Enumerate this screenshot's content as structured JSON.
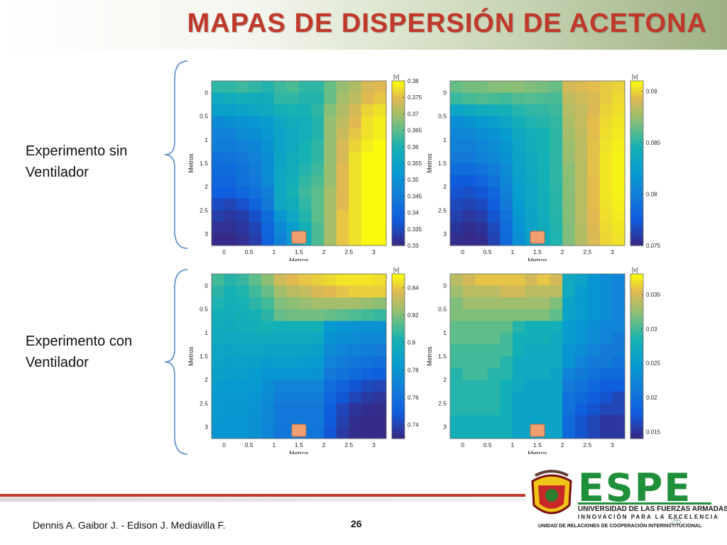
{
  "header": {
    "title": "MAPAS DE DISPERSIÓN DE ACETONA"
  },
  "row_labels": {
    "top": [
      "Experimento sin",
      "Ventilador"
    ],
    "bottom": [
      "Experimento con",
      "Ventilador"
    ]
  },
  "footer": {
    "authors": "Dennis A. Gaibor J.  -  Edison J. Mediavilla F.",
    "page": "26",
    "page_faint": "26"
  },
  "logo": {
    "name": "ESPE",
    "line1": "UNIVERSIDAD DE LAS FUERZAS ARMADAS",
    "line2": "INNOVACIÓN PARA LA EXCELENCIA",
    "line3": "UNIDAD DE RELACIONES DE COOPERACIÓN INTERINSTITUCIONAL"
  },
  "colors": {
    "title": "#c0392b",
    "brace": "#5b8ac8",
    "footer_line": "#c0392b",
    "marker": "#f0a070",
    "espe_green": "#1f8f3a"
  },
  "chart_data": [
    {
      "type": "heatmap",
      "panel": "top-left",
      "xlabel": "Metros",
      "ylabel": "Metros",
      "xticks": [
        "0",
        "0.5",
        "1",
        "1.5",
        "2",
        "2.5",
        "3"
      ],
      "yticks": [
        "0",
        "0.5",
        "1",
        "1.5",
        "2",
        "2.5",
        "3"
      ],
      "colorbar_unit": "[v]",
      "colorbar_ticks": [
        "0.38",
        "0.375",
        "0.37",
        "0.365",
        "0.36",
        "0.355",
        "0.35",
        "0.345",
        "0.34",
        "0.335",
        "0.33"
      ],
      "vmin": 0.33,
      "vmax": 0.38,
      "marker_x": 1.5,
      "z": [
        [
          0.362,
          0.362,
          0.363,
          0.362,
          0.361,
          0.363,
          0.364,
          0.362,
          0.362,
          0.366,
          0.369,
          0.371,
          0.374,
          0.375
        ],
        [
          0.357,
          0.358,
          0.359,
          0.358,
          0.358,
          0.362,
          0.362,
          0.361,
          0.361,
          0.366,
          0.37,
          0.372,
          0.375,
          0.376
        ],
        [
          0.354,
          0.354,
          0.355,
          0.356,
          0.357,
          0.359,
          0.36,
          0.36,
          0.362,
          0.368,
          0.371,
          0.374,
          0.377,
          0.378
        ],
        [
          0.348,
          0.349,
          0.35,
          0.351,
          0.353,
          0.356,
          0.358,
          0.359,
          0.361,
          0.369,
          0.372,
          0.375,
          0.378,
          0.379
        ],
        [
          0.346,
          0.346,
          0.348,
          0.349,
          0.351,
          0.355,
          0.357,
          0.359,
          0.361,
          0.369,
          0.373,
          0.376,
          0.378,
          0.379
        ],
        [
          0.345,
          0.345,
          0.346,
          0.347,
          0.35,
          0.355,
          0.357,
          0.36,
          0.362,
          0.369,
          0.374,
          0.377,
          0.379,
          0.38
        ],
        [
          0.342,
          0.343,
          0.344,
          0.346,
          0.349,
          0.355,
          0.358,
          0.36,
          0.362,
          0.369,
          0.374,
          0.378,
          0.38,
          0.38
        ],
        [
          0.341,
          0.341,
          0.343,
          0.345,
          0.349,
          0.356,
          0.358,
          0.361,
          0.363,
          0.369,
          0.375,
          0.378,
          0.38,
          0.38
        ],
        [
          0.34,
          0.34,
          0.342,
          0.344,
          0.348,
          0.356,
          0.359,
          0.362,
          0.364,
          0.369,
          0.375,
          0.378,
          0.38,
          0.38
        ],
        [
          0.338,
          0.338,
          0.34,
          0.342,
          0.346,
          0.356,
          0.36,
          0.363,
          0.365,
          0.37,
          0.375,
          0.378,
          0.38,
          0.38
        ],
        [
          0.335,
          0.334,
          0.336,
          0.339,
          0.344,
          0.356,
          0.358,
          0.362,
          0.365,
          0.37,
          0.375,
          0.378,
          0.38,
          0.38
        ],
        [
          0.333,
          0.332,
          0.333,
          0.336,
          0.341,
          0.351,
          0.356,
          0.361,
          0.365,
          0.37,
          0.376,
          0.378,
          0.38,
          0.38
        ],
        [
          0.331,
          0.331,
          0.332,
          0.334,
          0.34,
          0.348,
          0.353,
          0.359,
          0.364,
          0.37,
          0.376,
          0.378,
          0.38,
          0.38
        ],
        [
          0.33,
          0.33,
          0.331,
          0.333,
          0.339,
          0.346,
          0.352,
          0.358,
          0.364,
          0.37,
          0.376,
          0.378,
          0.38,
          0.38
        ]
      ]
    },
    {
      "type": "heatmap",
      "panel": "top-right",
      "xlabel": "Metros",
      "ylabel": "Metros",
      "xticks": [
        "0",
        "0.5",
        "1",
        "1.5",
        "2",
        "2.5",
        "3"
      ],
      "yticks": [
        "0",
        "0.5",
        "1",
        "1.5",
        "2",
        "2.5",
        "3"
      ],
      "colorbar_unit": "[v]",
      "colorbar_ticks": [
        "0.09",
        "0.085",
        "0.08",
        "0.075"
      ],
      "vmin": 0.075,
      "vmax": 0.091,
      "marker_x": 1.5,
      "z": [
        [
          0.0865,
          0.0868,
          0.0868,
          0.0871,
          0.0872,
          0.0873,
          0.087,
          0.0868,
          0.0865,
          0.089,
          0.0893,
          0.0895,
          0.0898,
          0.09
        ],
        [
          0.0855,
          0.0858,
          0.086,
          0.0858,
          0.0856,
          0.086,
          0.0861,
          0.0859,
          0.0858,
          0.0885,
          0.0889,
          0.0892,
          0.0898,
          0.0902
        ],
        [
          0.083,
          0.0835,
          0.084,
          0.0842,
          0.0845,
          0.085,
          0.0852,
          0.0853,
          0.0855,
          0.0882,
          0.0886,
          0.0893,
          0.09,
          0.0903
        ],
        [
          0.081,
          0.0815,
          0.082,
          0.0825,
          0.0832,
          0.0842,
          0.0848,
          0.085,
          0.0853,
          0.088,
          0.0886,
          0.0895,
          0.0902,
          0.0905
        ],
        [
          0.0805,
          0.0805,
          0.081,
          0.0815,
          0.0822,
          0.0835,
          0.0842,
          0.0846,
          0.0852,
          0.0878,
          0.0885,
          0.0895,
          0.0903,
          0.0906
        ],
        [
          0.08,
          0.08,
          0.0805,
          0.081,
          0.0818,
          0.0832,
          0.084,
          0.0846,
          0.0852,
          0.0876,
          0.0884,
          0.0896,
          0.0904,
          0.0907
        ],
        [
          0.0795,
          0.0795,
          0.08,
          0.0806,
          0.0815,
          0.083,
          0.0838,
          0.0845,
          0.0852,
          0.0875,
          0.0884,
          0.0896,
          0.0905,
          0.0908
        ],
        [
          0.0785,
          0.0785,
          0.079,
          0.0798,
          0.081,
          0.0828,
          0.0836,
          0.0845,
          0.0852,
          0.0873,
          0.0883,
          0.0896,
          0.0905,
          0.0908
        ],
        [
          0.0775,
          0.0775,
          0.078,
          0.079,
          0.0805,
          0.0826,
          0.0835,
          0.0844,
          0.0852,
          0.0872,
          0.0883,
          0.0895,
          0.0905,
          0.0908
        ],
        [
          0.077,
          0.0768,
          0.0772,
          0.0782,
          0.08,
          0.0824,
          0.0833,
          0.0843,
          0.0851,
          0.0872,
          0.0883,
          0.0895,
          0.0905,
          0.0908
        ],
        [
          0.0765,
          0.0762,
          0.0766,
          0.0776,
          0.0796,
          0.0822,
          0.0832,
          0.0842,
          0.0851,
          0.0871,
          0.0883,
          0.0895,
          0.0904,
          0.0907
        ],
        [
          0.076,
          0.0756,
          0.076,
          0.077,
          0.079,
          0.0818,
          0.083,
          0.084,
          0.085,
          0.0871,
          0.0883,
          0.0894,
          0.0903,
          0.0906
        ],
        [
          0.0755,
          0.0752,
          0.0755,
          0.0765,
          0.0786,
          0.0815,
          0.0828,
          0.0839,
          0.0849,
          0.087,
          0.0882,
          0.0893,
          0.0902,
          0.0905
        ],
        [
          0.0752,
          0.075,
          0.0752,
          0.0762,
          0.0784,
          0.0812,
          0.0826,
          0.0838,
          0.0848,
          0.087,
          0.0882,
          0.0892,
          0.0901,
          0.0904
        ]
      ]
    },
    {
      "type": "heatmap",
      "panel": "bottom-left",
      "xlabel": "Metros",
      "ylabel": "Metros",
      "xticks": [
        "0",
        "0.5",
        "1",
        "1.5",
        "2",
        "2.5",
        "3"
      ],
      "yticks": [
        "0",
        "0.5",
        "1",
        "1.5",
        "2",
        "2.5",
        "3"
      ],
      "colorbar_unit": "[v]",
      "colorbar_ticks": [
        "0.84",
        "0.82",
        "0.8",
        "0.78",
        "0.76",
        "0.74"
      ],
      "vmin": 0.73,
      "vmax": 0.85,
      "marker_x": 1.5,
      "z": [
        [
          0.81,
          0.805,
          0.808,
          0.815,
          0.822,
          0.834,
          0.838,
          0.84,
          0.842,
          0.844,
          0.846,
          0.846,
          0.846,
          0.845
        ],
        [
          0.806,
          0.802,
          0.804,
          0.81,
          0.816,
          0.826,
          0.83,
          0.832,
          0.836,
          0.838,
          0.84,
          0.842,
          0.842,
          0.842
        ],
        [
          0.803,
          0.8,
          0.802,
          0.806,
          0.81,
          0.82,
          0.822,
          0.824,
          0.826,
          0.826,
          0.826,
          0.826,
          0.824,
          0.822
        ],
        [
          0.8,
          0.798,
          0.8,
          0.802,
          0.806,
          0.816,
          0.818,
          0.818,
          0.818,
          0.816,
          0.814,
          0.812,
          0.81,
          0.808
        ],
        [
          0.797,
          0.796,
          0.798,
          0.8,
          0.802,
          0.8,
          0.8,
          0.8,
          0.8,
          0.782,
          0.78,
          0.778,
          0.778,
          0.778
        ],
        [
          0.795,
          0.794,
          0.795,
          0.796,
          0.796,
          0.795,
          0.795,
          0.795,
          0.793,
          0.778,
          0.776,
          0.774,
          0.772,
          0.772
        ],
        [
          0.792,
          0.791,
          0.792,
          0.792,
          0.79,
          0.79,
          0.79,
          0.789,
          0.788,
          0.774,
          0.77,
          0.768,
          0.766,
          0.765
        ],
        [
          0.79,
          0.788,
          0.789,
          0.788,
          0.785,
          0.786,
          0.786,
          0.785,
          0.784,
          0.77,
          0.766,
          0.762,
          0.76,
          0.758
        ],
        [
          0.787,
          0.786,
          0.786,
          0.784,
          0.78,
          0.78,
          0.78,
          0.78,
          0.779,
          0.764,
          0.76,
          0.756,
          0.752,
          0.75
        ],
        [
          0.785,
          0.784,
          0.784,
          0.782,
          0.776,
          0.77,
          0.77,
          0.77,
          0.77,
          0.758,
          0.752,
          0.746,
          0.742,
          0.74
        ],
        [
          0.783,
          0.782,
          0.782,
          0.78,
          0.774,
          0.766,
          0.766,
          0.766,
          0.766,
          0.754,
          0.746,
          0.74,
          0.736,
          0.734
        ],
        [
          0.782,
          0.781,
          0.781,
          0.778,
          0.772,
          0.764,
          0.764,
          0.764,
          0.764,
          0.75,
          0.74,
          0.734,
          0.732,
          0.731
        ],
        [
          0.781,
          0.78,
          0.78,
          0.777,
          0.771,
          0.763,
          0.763,
          0.763,
          0.763,
          0.748,
          0.738,
          0.732,
          0.73,
          0.73
        ],
        [
          0.78,
          0.78,
          0.78,
          0.777,
          0.77,
          0.762,
          0.762,
          0.762,
          0.762,
          0.746,
          0.736,
          0.731,
          0.73,
          0.73
        ]
      ]
    },
    {
      "type": "heatmap",
      "panel": "bottom-right",
      "xlabel": "Metros",
      "ylabel": "Metros",
      "xticks": [
        "0",
        "0.5",
        "1",
        "1.5",
        "2",
        "2.5",
        "3"
      ],
      "yticks": [
        "0",
        "0.5",
        "1",
        "1.5",
        "2",
        "2.5",
        "3"
      ],
      "colorbar_unit": "[v]",
      "colorbar_ticks": [
        "0.035",
        "0.03",
        "0.025",
        "0.02",
        "0.015"
      ],
      "vmin": 0.014,
      "vmax": 0.038,
      "marker_x": 1.5,
      "z": [
        [
          0.034,
          0.035,
          0.036,
          0.036,
          0.036,
          0.036,
          0.035,
          0.036,
          0.035,
          0.027,
          0.026,
          0.024,
          0.023,
          0.022
        ],
        [
          0.033,
          0.034,
          0.034,
          0.034,
          0.035,
          0.035,
          0.034,
          0.034,
          0.034,
          0.027,
          0.025,
          0.024,
          0.023,
          0.022
        ],
        [
          0.032,
          0.033,
          0.033,
          0.033,
          0.033,
          0.033,
          0.033,
          0.033,
          0.032,
          0.026,
          0.025,
          0.024,
          0.023,
          0.022
        ],
        [
          0.032,
          0.032,
          0.032,
          0.032,
          0.032,
          0.032,
          0.032,
          0.032,
          0.031,
          0.026,
          0.025,
          0.024,
          0.023,
          0.022
        ],
        [
          0.031,
          0.031,
          0.031,
          0.031,
          0.031,
          0.029,
          0.028,
          0.028,
          0.028,
          0.025,
          0.024,
          0.023,
          0.022,
          0.022
        ],
        [
          0.031,
          0.031,
          0.031,
          0.031,
          0.03,
          0.028,
          0.028,
          0.028,
          0.027,
          0.025,
          0.024,
          0.023,
          0.022,
          0.021
        ],
        [
          0.03,
          0.03,
          0.03,
          0.03,
          0.03,
          0.028,
          0.027,
          0.027,
          0.027,
          0.024,
          0.023,
          0.022,
          0.021,
          0.021
        ],
        [
          0.03,
          0.03,
          0.03,
          0.03,
          0.029,
          0.027,
          0.027,
          0.027,
          0.027,
          0.024,
          0.022,
          0.021,
          0.021,
          0.02
        ],
        [
          0.029,
          0.03,
          0.03,
          0.029,
          0.029,
          0.027,
          0.027,
          0.027,
          0.026,
          0.022,
          0.021,
          0.02,
          0.019,
          0.019
        ],
        [
          0.029,
          0.029,
          0.029,
          0.029,
          0.028,
          0.027,
          0.026,
          0.026,
          0.026,
          0.021,
          0.02,
          0.019,
          0.018,
          0.018
        ],
        [
          0.029,
          0.029,
          0.029,
          0.029,
          0.028,
          0.026,
          0.026,
          0.026,
          0.026,
          0.02,
          0.019,
          0.018,
          0.017,
          0.016
        ],
        [
          0.029,
          0.029,
          0.029,
          0.029,
          0.028,
          0.026,
          0.026,
          0.026,
          0.026,
          0.02,
          0.018,
          0.017,
          0.016,
          0.016
        ],
        [
          0.028,
          0.028,
          0.028,
          0.028,
          0.028,
          0.026,
          0.026,
          0.026,
          0.026,
          0.019,
          0.017,
          0.016,
          0.015,
          0.015
        ],
        [
          0.028,
          0.028,
          0.028,
          0.028,
          0.028,
          0.026,
          0.026,
          0.026,
          0.026,
          0.019,
          0.017,
          0.016,
          0.015,
          0.015
        ]
      ]
    }
  ]
}
